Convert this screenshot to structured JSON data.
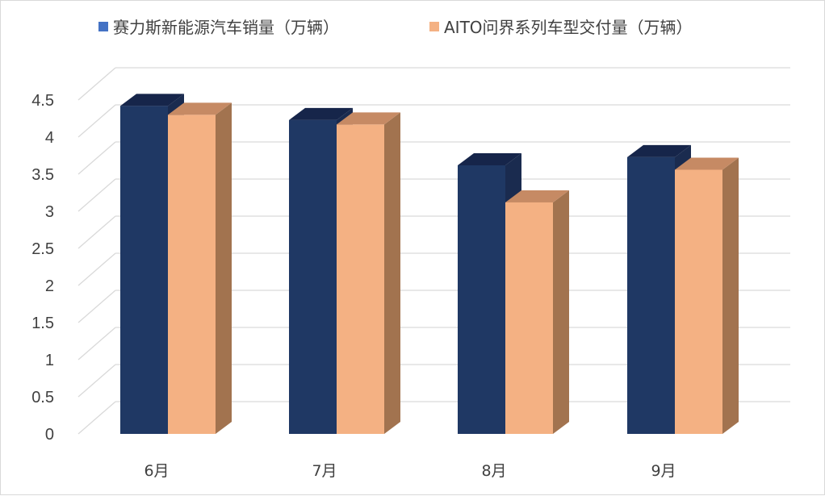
{
  "chart_data": {
    "type": "bar",
    "categories": [
      "6月",
      "7月",
      "8月",
      "9月"
    ],
    "series": [
      {
        "name": "赛力斯新能源汽车销量（万辆）",
        "values": [
          4.42,
          4.23,
          3.62,
          3.73
        ],
        "color": "#1f3864"
      },
      {
        "name": "AITO问界系列车型交付量（万辆）",
        "values": [
          4.3,
          4.17,
          3.12,
          3.56
        ],
        "color": "#f4b183"
      }
    ],
    "yticks": [
      "0",
      "0.5",
      "1",
      "1.5",
      "2",
      "2.5",
      "3",
      "3.5",
      "4",
      "4.5"
    ],
    "ylim": [
      0,
      4.5
    ],
    "grid": true,
    "legend": "top"
  }
}
